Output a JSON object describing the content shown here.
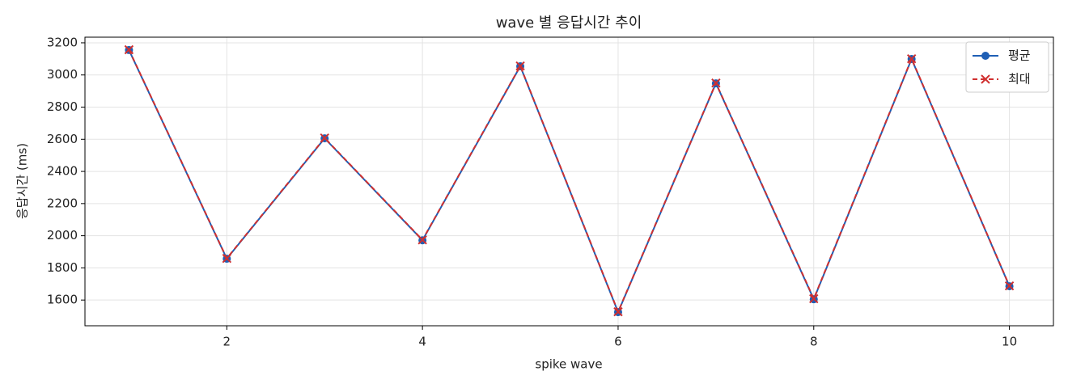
{
  "chart_data": {
    "type": "line",
    "title": "wave 별 응답시간 추이",
    "x_label": "spike wave",
    "y_label": "응답시간 (ms)",
    "x": [
      1,
      2,
      3,
      4,
      5,
      6,
      7,
      8,
      9,
      10
    ],
    "series": [
      {
        "name": "평균",
        "color": "#1f5fb5",
        "marker": "o",
        "dash": false,
        "values": [
          3155,
          1857,
          2606,
          1972,
          3054,
          1525,
          2948,
          1605,
          3099,
          1686
        ]
      },
      {
        "name": "최대",
        "color": "#d03030",
        "marker": "x",
        "dash": true,
        "values": [
          3157,
          1859,
          2608,
          1974,
          3056,
          1527,
          2950,
          1608,
          3101,
          1688
        ]
      }
    ],
    "xlim": [
      0.55,
      10.45
    ],
    "ylim": [
      1440,
      3235
    ],
    "xticks": [
      2,
      4,
      6,
      8,
      10
    ],
    "yticks": [
      1600,
      1800,
      2000,
      2200,
      2400,
      2600,
      2800,
      3000,
      3200
    ],
    "grid": true,
    "legend": "upper right"
  }
}
